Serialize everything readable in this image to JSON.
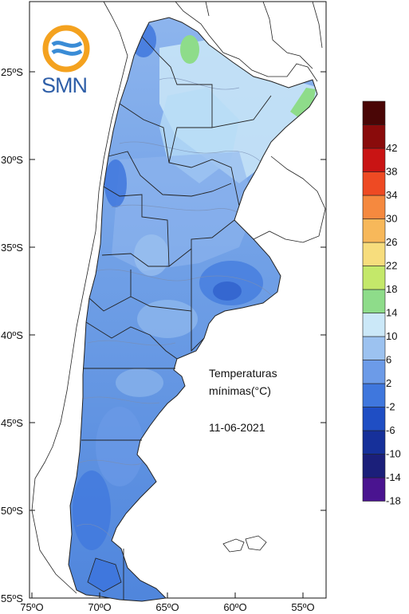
{
  "logo": {
    "text": "SMN"
  },
  "annotation": {
    "line1": "Temperaturas",
    "line2": "mínimas(°C)",
    "date": "11-06-2021"
  },
  "lat_ticks": [
    {
      "label": "25ºS",
      "lat": -25
    },
    {
      "label": "30ºS",
      "lat": -30
    },
    {
      "label": "35ºS",
      "lat": -35
    },
    {
      "label": "40ºS",
      "lat": -40
    },
    {
      "label": "45ºS",
      "lat": -45
    },
    {
      "label": "50ºS",
      "lat": -50
    },
    {
      "label": "55ºS",
      "lat": -55
    }
  ],
  "lon_ticks": [
    {
      "label": "75ºO",
      "lon": -75
    },
    {
      "label": "70ºO",
      "lon": -70
    },
    {
      "label": "65ºO",
      "lon": -65
    },
    {
      "label": "60ºO",
      "lon": -60
    },
    {
      "label": "55ºO",
      "lon": -55
    }
  ],
  "legend": [
    {
      "label": "-18",
      "color": "#4a1490"
    },
    {
      "label": "-14",
      "color": "#1b1f7a"
    },
    {
      "label": "-10",
      "color": "#16309a"
    },
    {
      "label": "-6",
      "color": "#1f4ec4"
    },
    {
      "label": "-2",
      "color": "#3f77dd"
    },
    {
      "label": "2",
      "color": "#6c9be8"
    },
    {
      "label": "6",
      "color": "#9cc2f0"
    },
    {
      "label": "10",
      "color": "#cbe8f8"
    },
    {
      "label": "14",
      "color": "#8edc8a"
    },
    {
      "label": "18",
      "color": "#c4e86a"
    },
    {
      "label": "22",
      "color": "#f7dd7d"
    },
    {
      "label": "26",
      "color": "#f7b85a"
    },
    {
      "label": "30",
      "color": "#f5893f"
    },
    {
      "label": "34",
      "color": "#ee4a23"
    },
    {
      "label": "38",
      "color": "#c91414"
    },
    {
      "label": "42",
      "color": "#8a0b0b"
    },
    {
      "label": "",
      "color": "#4a0606"
    }
  ]
}
